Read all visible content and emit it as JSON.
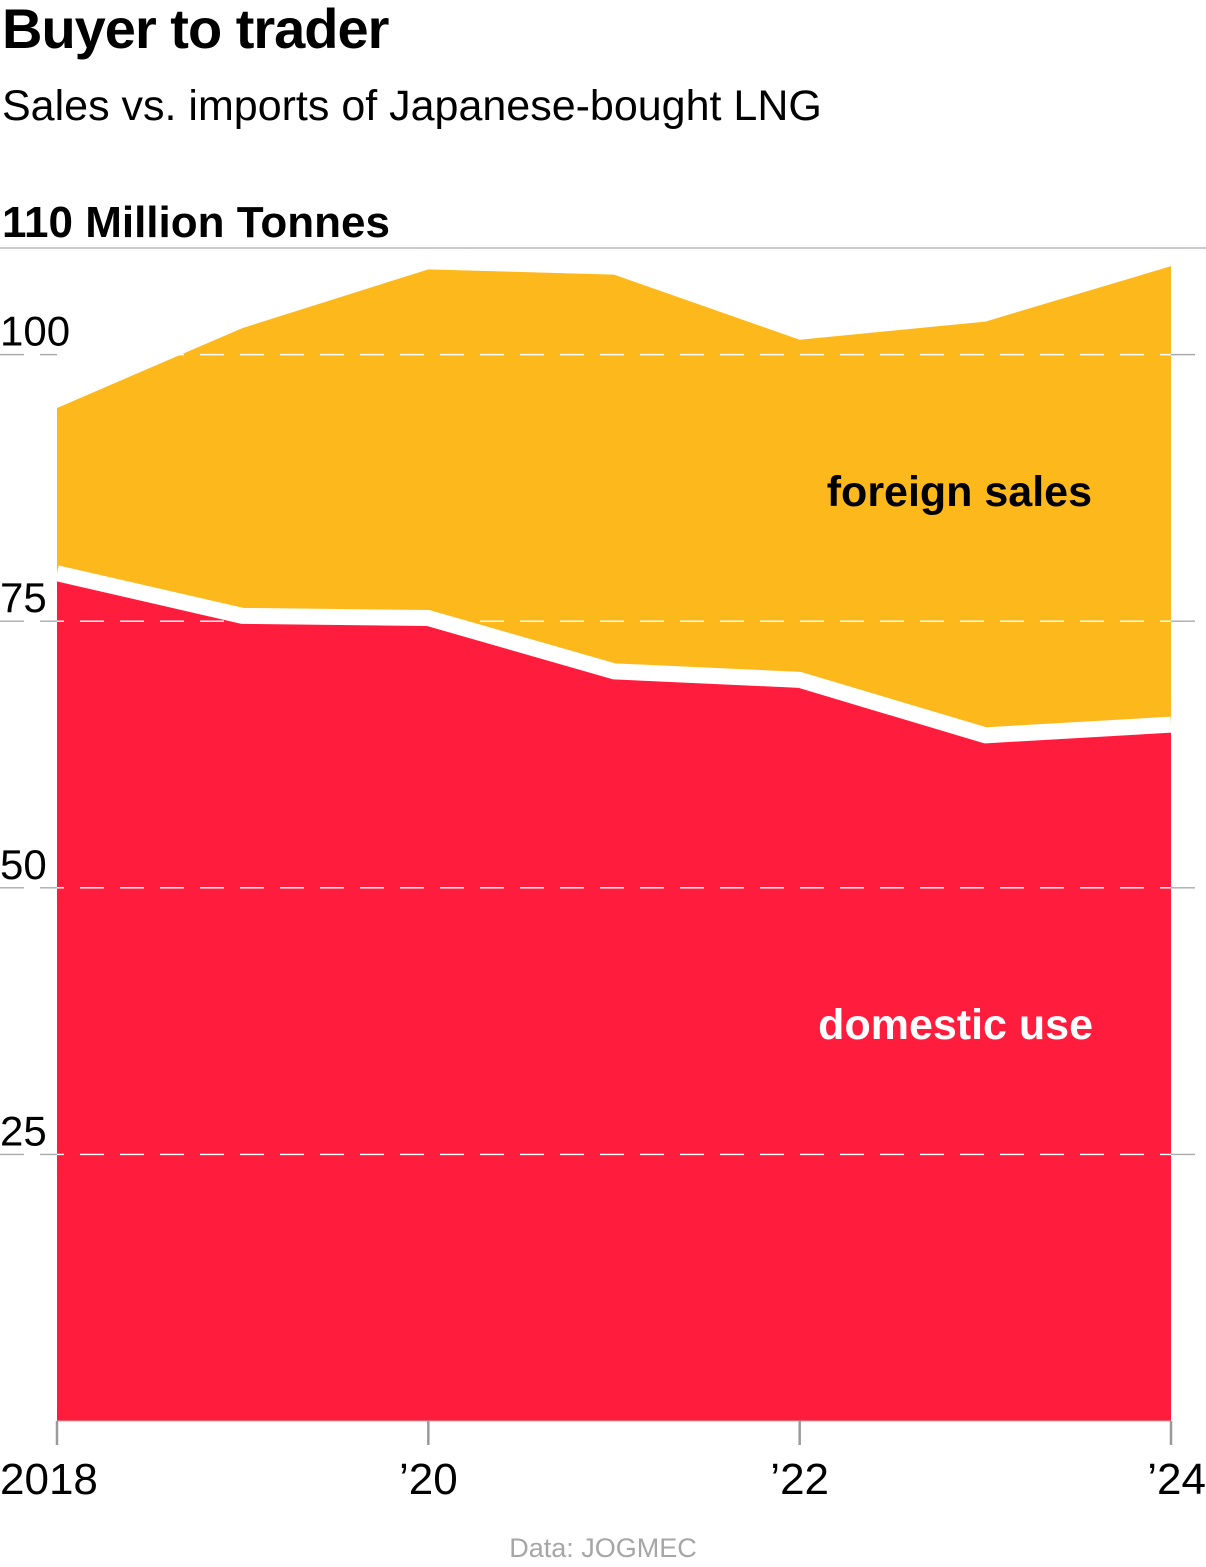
{
  "title": "Buyer to trader",
  "subtitle": "Sales vs. imports of Japanese-bought LNG",
  "source": "Data: JOGMEC",
  "colors": {
    "domestic": "#ff1c3c",
    "foreign": "#fdb81c",
    "gridline": "#aaaaaa",
    "source_text": "#a6a6a6"
  },
  "chart_data": {
    "type": "area",
    "stacked": true,
    "x": [
      2018,
      2019,
      2020,
      2021,
      2022,
      2023,
      2024
    ],
    "x_tick_values": [
      2018,
      2020,
      2022,
      2024
    ],
    "x_tick_labels": [
      "2018",
      "’20",
      "’22",
      "’24"
    ],
    "y_ticks": [
      25,
      50,
      75,
      100
    ],
    "y_tick_labels": [
      "25",
      "50",
      "75",
      "100"
    ],
    "y_max_label": "110 Million Tonnes",
    "ylim": [
      0,
      110
    ],
    "grid": true,
    "series": [
      {
        "name": "domestic use",
        "values": [
          79.5,
          75.5,
          75.3,
          70.3,
          69.5,
          64.3,
          65.3
        ],
        "color": "#ff1c3c",
        "label_color": "#ffffff"
      },
      {
        "name": "foreign sales",
        "values": [
          15.5,
          27.0,
          32.7,
          37.2,
          31.9,
          38.8,
          43.0
        ],
        "color": "#fdb81c",
        "label_color": "#000000"
      }
    ],
    "totals": [
      95.0,
      102.5,
      108.0,
      107.5,
      101.4,
      103.1,
      108.3
    ]
  }
}
